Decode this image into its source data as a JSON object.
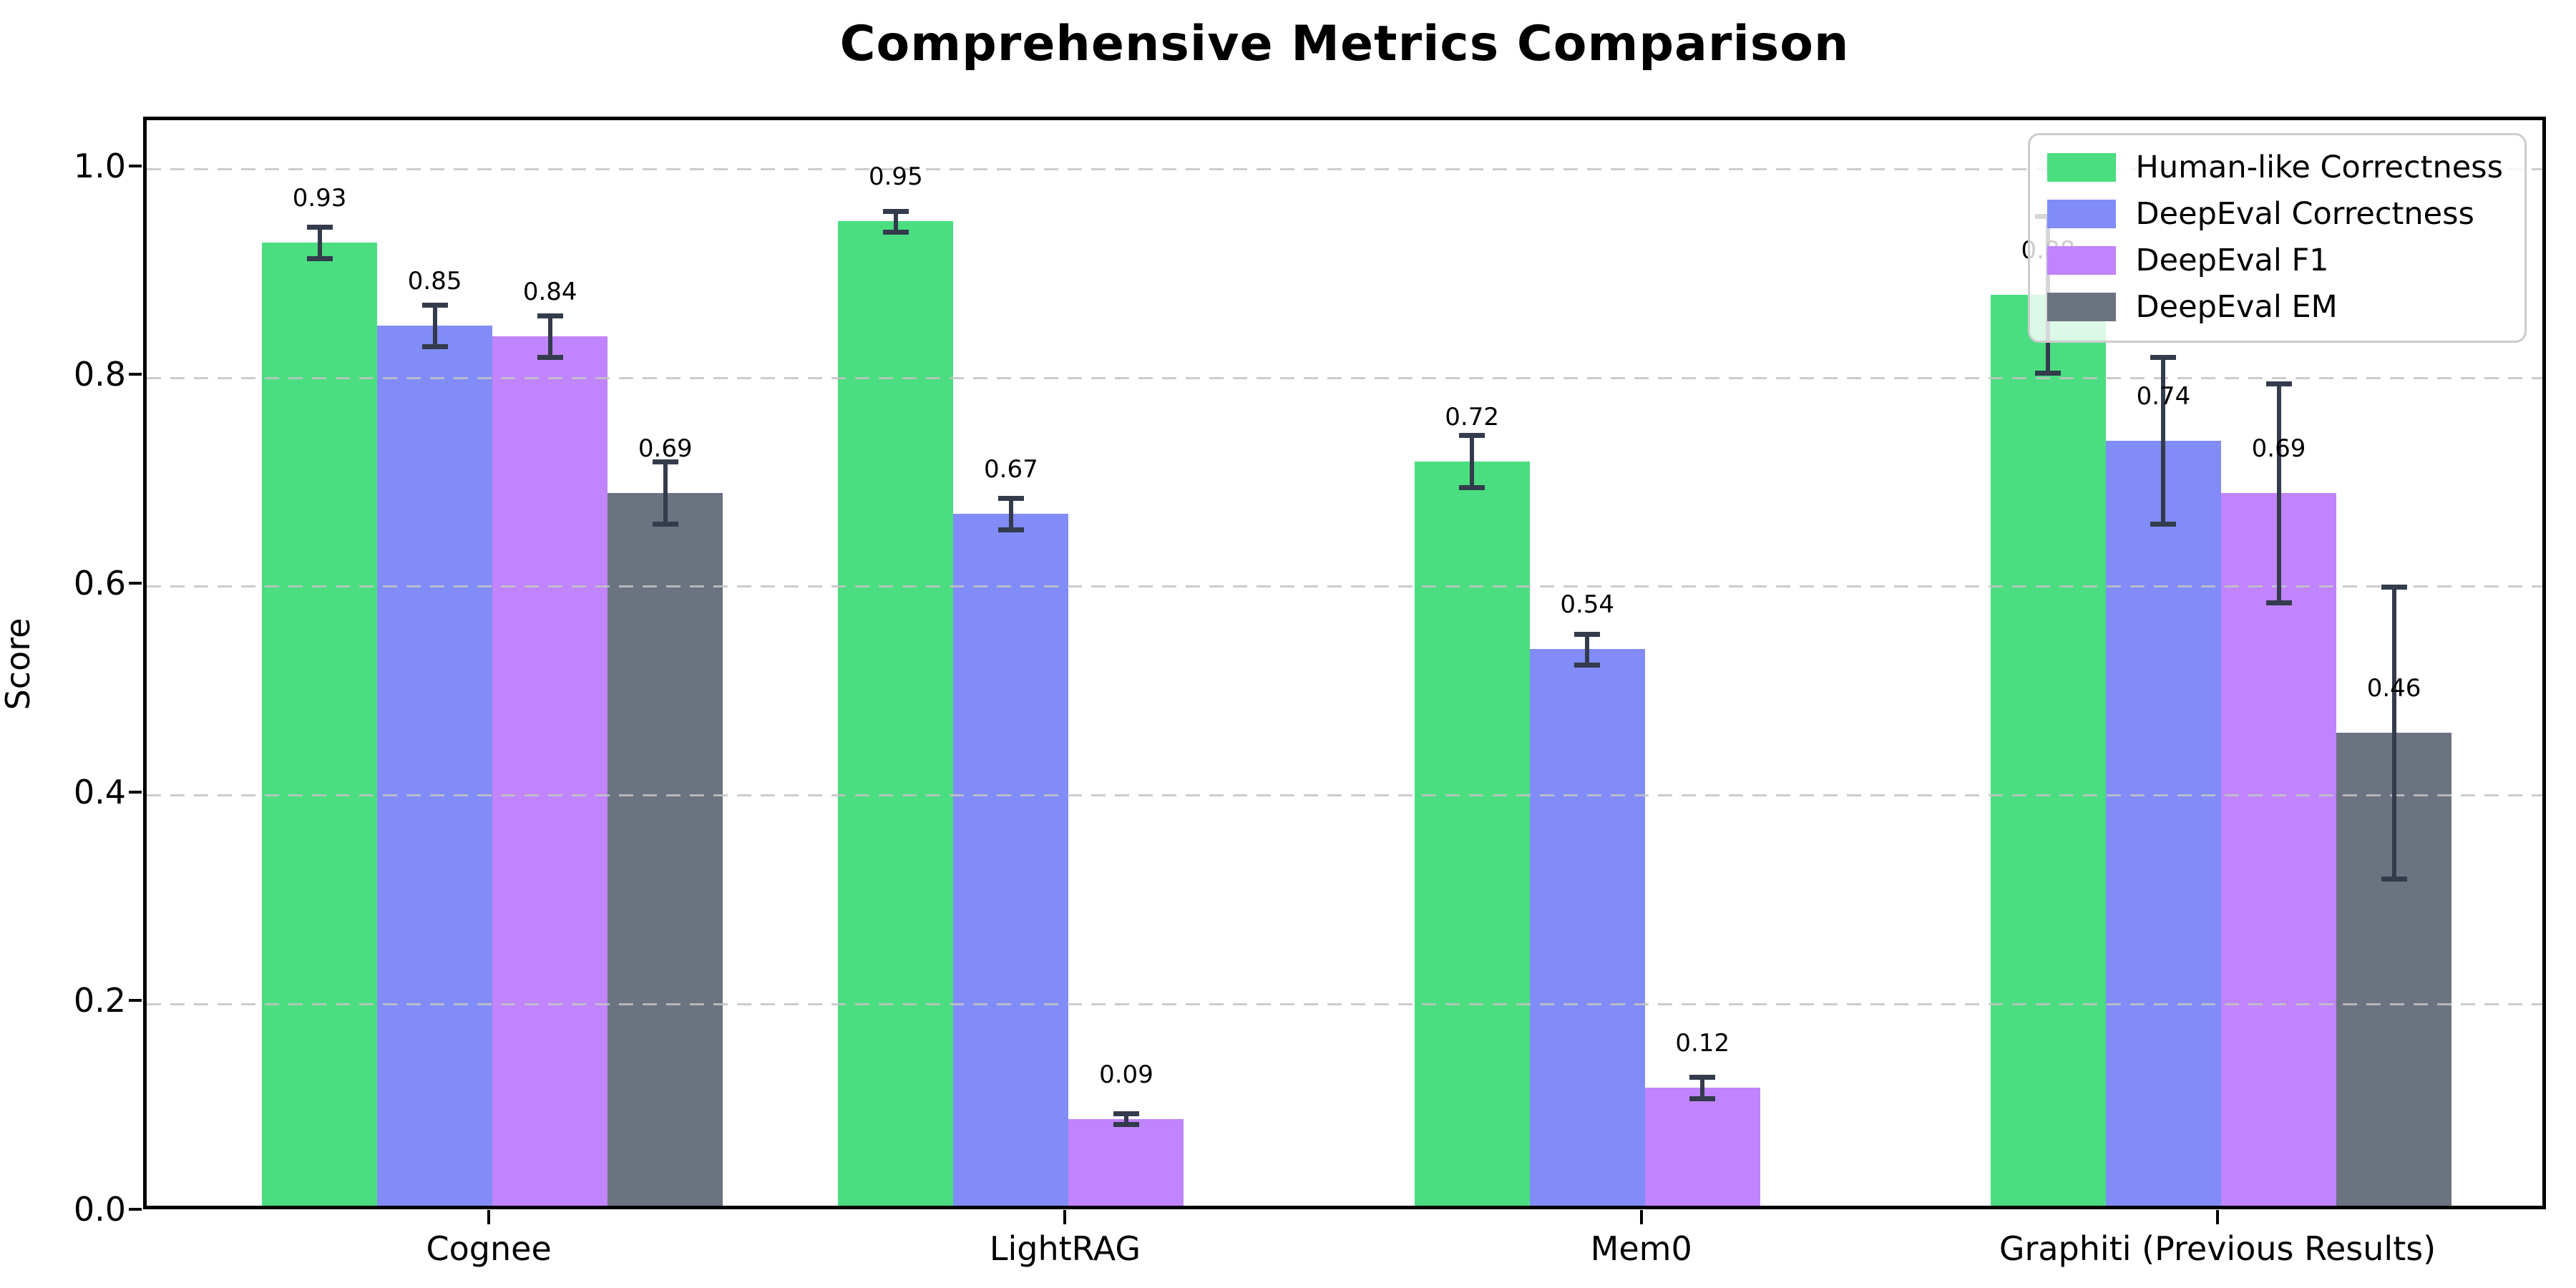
{
  "chart_data": {
    "type": "bar",
    "title": "Comprehensive Metrics Comparison",
    "ylabel": "Score",
    "xlabel": "",
    "categories": [
      "Cognee",
      "LightRAG",
      "Mem0",
      "Graphiti (Previous Results)"
    ],
    "series": [
      {
        "name": "Human-like Correctness",
        "color": "#4ade80",
        "values": [
          0.93,
          0.95,
          0.72,
          0.88
        ],
        "errors": [
          0.015,
          0.01,
          0.025,
          0.075
        ],
        "labels": [
          "0.93",
          "0.95",
          "0.72",
          "0.88"
        ]
      },
      {
        "name": "DeepEval Correctness",
        "color": "#818cf8",
        "values": [
          0.85,
          0.67,
          0.54,
          0.74
        ],
        "errors": [
          0.02,
          0.015,
          0.015,
          0.08
        ],
        "labels": [
          "0.85",
          "0.67",
          "0.54",
          "0.74"
        ]
      },
      {
        "name": "DeepEval F1",
        "color": "#c084fc",
        "values": [
          0.84,
          0.09,
          0.12,
          0.69
        ],
        "errors": [
          0.02,
          0.005,
          0.01,
          0.105
        ],
        "labels": [
          "0.84",
          "0.09",
          "0.12",
          "0.69"
        ]
      },
      {
        "name": "DeepEval EM",
        "color": "#6b7280",
        "values": [
          0.69,
          0.0,
          0.0,
          0.46
        ],
        "errors": [
          0.03,
          0.004,
          0.004,
          0.14
        ],
        "labels": [
          "0.69",
          "",
          "",
          "0.46"
        ]
      }
    ],
    "ylim": [
      0,
      1.047
    ],
    "yticks": [
      0.0,
      0.2,
      0.4,
      0.6,
      0.8,
      1.0
    ],
    "ytick_labels": [
      "0.0",
      "0.2",
      "0.4",
      "0.6",
      "0.8",
      "1.0"
    ],
    "grid": "dashed-horizontal-above-bars",
    "legend_position": "upper-right",
    "errorbar_color": "#333b4c",
    "bar_width_units": 0.2,
    "xlim": [
      -0.6,
      3.57
    ]
  }
}
